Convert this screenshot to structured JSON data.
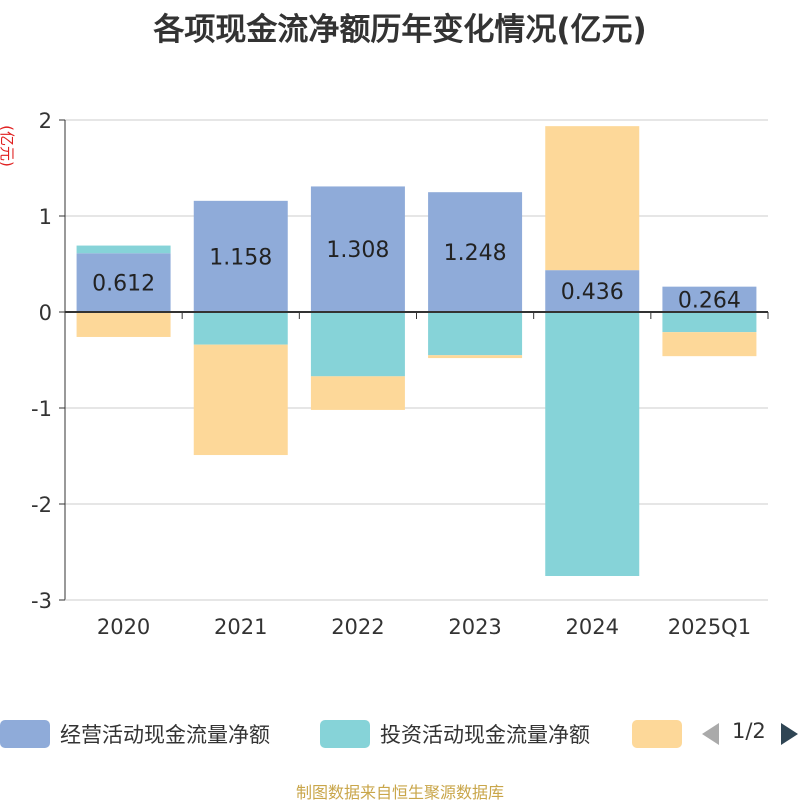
{
  "chart_data": {
    "type": "bar",
    "stacked": true,
    "title": "各项现金流净额历年变化情况(亿元)",
    "ylabel": "(亿元)",
    "xlabel": "",
    "ylim": [
      -3,
      2
    ],
    "yticks": [
      -3,
      -2,
      -1,
      0,
      1,
      2
    ],
    "grid": true,
    "categories": [
      "2020",
      "2021",
      "2022",
      "2023",
      "2024",
      "2025Q1"
    ],
    "series": [
      {
        "name": "经营活动现金流量净额",
        "color": "#8fabd9",
        "values": [
          0.612,
          1.158,
          1.308,
          1.248,
          0.436,
          0.264
        ],
        "show_labels": true
      },
      {
        "name": "投资活动现金流量净额",
        "color": "#86d3d8",
        "values": [
          0.08,
          -0.34,
          -0.67,
          -0.45,
          -2.75,
          -0.21
        ],
        "show_labels": false
      },
      {
        "name": "",
        "color": "#fdd899",
        "values": [
          -0.26,
          -1.15,
          -0.35,
          -0.03,
          1.5,
          -0.25
        ],
        "show_labels": false
      }
    ],
    "legend_position": "bottom"
  },
  "legend": {
    "items": [
      "经营活动现金流量净额",
      "投资活动现金流量净额",
      ""
    ],
    "page": "1/2"
  },
  "source": "制图数据来自恒生聚源数据库"
}
